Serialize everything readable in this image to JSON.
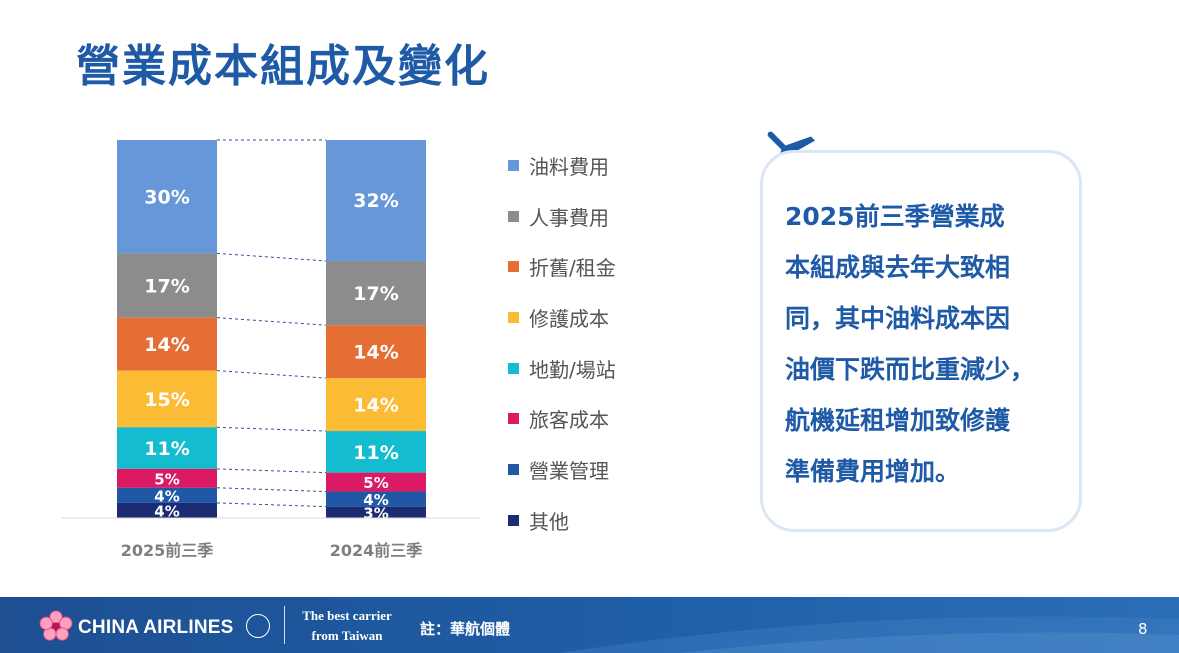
{
  "slide": {
    "title": "營業成本組成及變化",
    "page_number": "8",
    "note": "註：華航個體"
  },
  "textbox": {
    "lines": [
      "2025前三季營業成",
      "本組成與去年大致相",
      "同，其中油料成本因",
      "油價下跌而比重減少，",
      "航機延租增加致修護",
      "準備費用增加。"
    ]
  },
  "footer": {
    "logo_text": "CHINA AIRLINES",
    "tagline_line1": "The best carrier",
    "tagline_line2": "from Taiwan",
    "logo_icon": "plum-blossom-icon"
  },
  "colors": {
    "title": "#1f5aa6",
    "footer": "#1d4f91",
    "box_border": "#dbe6f4"
  },
  "chart_data": {
    "type": "bar",
    "stacked": true,
    "normalized": true,
    "categories": [
      "2025前三季",
      "2024前三季"
    ],
    "series": [
      {
        "name": "油料費用",
        "color": "#6597d9",
        "values": [
          30,
          32
        ],
        "labels": [
          "30%",
          "32%"
        ]
      },
      {
        "name": "人事費用",
        "color": "#8c8c8c",
        "values": [
          17,
          17
        ],
        "labels": [
          "17%",
          "17%"
        ]
      },
      {
        "name": "折舊/租金",
        "color": "#e46e33",
        "values": [
          14,
          14
        ],
        "labels": [
          "14%",
          "14%"
        ]
      },
      {
        "name": "修護成本",
        "color": "#fbbb35",
        "values": [
          15,
          14
        ],
        "labels": [
          "15%",
          "14%"
        ]
      },
      {
        "name": "地勤/場站",
        "color": "#14bccf",
        "values": [
          11,
          11
        ],
        "labels": [
          "11%",
          "11%"
        ]
      },
      {
        "name": "旅客成本",
        "color": "#db1a63",
        "values": [
          5,
          5
        ],
        "labels": [
          "5%",
          "5%"
        ]
      },
      {
        "name": "營業管理",
        "color": "#2058a6",
        "values": [
          4,
          4
        ],
        "labels": [
          "4%",
          "4%"
        ]
      },
      {
        "name": "其他",
        "color": "#1c2b73",
        "values": [
          4,
          3
        ],
        "labels": [
          "4%",
          "3%"
        ]
      }
    ],
    "connectors": "dashed",
    "legend_position": "right"
  }
}
